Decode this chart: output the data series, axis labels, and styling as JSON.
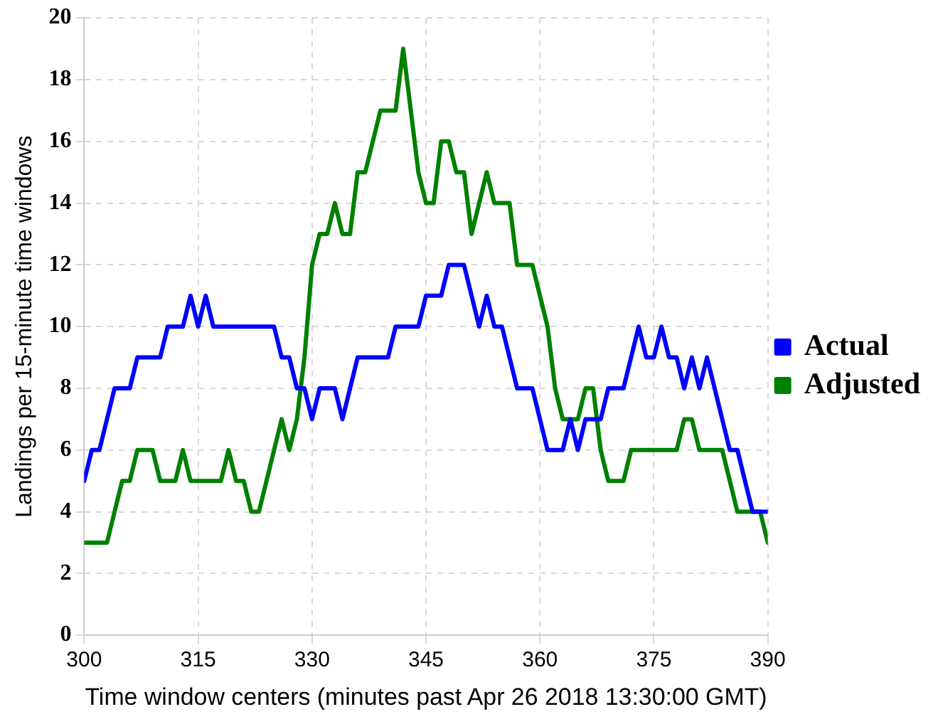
{
  "chart_data": {
    "type": "line",
    "xlabel": "Time window centers (minutes past Apr 26 2018 13:30:00 GMT)",
    "ylabel": "Landings per 15-minute time windows",
    "x": [
      300,
      301,
      302,
      303,
      304,
      305,
      306,
      307,
      308,
      309,
      310,
      311,
      312,
      313,
      314,
      315,
      316,
      317,
      318,
      319,
      320,
      321,
      322,
      323,
      324,
      325,
      326,
      327,
      328,
      329,
      330,
      331,
      332,
      333,
      334,
      335,
      336,
      337,
      338,
      339,
      340,
      341,
      342,
      343,
      344,
      345,
      346,
      347,
      348,
      349,
      350,
      351,
      352,
      353,
      354,
      355,
      356,
      357,
      358,
      359,
      360,
      361,
      362,
      363,
      364,
      365,
      366,
      367,
      368,
      369,
      370,
      371,
      372,
      373,
      374,
      375,
      376,
      377,
      378,
      379,
      380,
      381,
      382,
      383,
      384,
      385,
      386,
      387,
      388,
      389,
      390
    ],
    "series": [
      {
        "name": "Actual",
        "color": "#0000ff",
        "values": [
          5,
          6,
          6,
          7,
          8,
          8,
          8,
          9,
          9,
          9,
          9,
          10,
          10,
          10,
          11,
          10,
          11,
          10,
          10,
          10,
          10,
          10,
          10,
          10,
          10,
          10,
          9,
          9,
          8,
          8,
          7,
          8,
          8,
          8,
          7,
          8,
          9,
          9,
          9,
          9,
          9,
          10,
          10,
          10,
          10,
          11,
          11,
          11,
          12,
          12,
          12,
          11,
          10,
          11,
          10,
          10,
          9,
          8,
          8,
          8,
          7,
          6,
          6,
          6,
          7,
          6,
          7,
          7,
          7,
          8,
          8,
          8,
          9,
          10,
          9,
          9,
          10,
          9,
          9,
          8,
          9,
          8,
          9,
          8,
          7,
          6,
          6,
          5,
          4,
          4,
          4
        ]
      },
      {
        "name": "Adjusted",
        "color": "#008000",
        "values": [
          3,
          3,
          3,
          3,
          4,
          5,
          5,
          6,
          6,
          6,
          5,
          5,
          5,
          6,
          5,
          5,
          5,
          5,
          5,
          6,
          5,
          5,
          4,
          4,
          5,
          6,
          7,
          6,
          7,
          9,
          12,
          13,
          13,
          14,
          13,
          13,
          15,
          15,
          16,
          17,
          17,
          17,
          19,
          17,
          15,
          14,
          14,
          16,
          16,
          15,
          15,
          13,
          14,
          15,
          14,
          14,
          14,
          12,
          12,
          12,
          11,
          10,
          8,
          7,
          7,
          7,
          8,
          8,
          6,
          5,
          5,
          5,
          6,
          6,
          6,
          6,
          6,
          6,
          6,
          7,
          7,
          6,
          6,
          6,
          6,
          5,
          4,
          4,
          4,
          4,
          3
        ]
      }
    ],
    "xlim": [
      300,
      390
    ],
    "xticks": [
      300,
      315,
      330,
      345,
      360,
      375,
      390
    ],
    "ylim": [
      0,
      20
    ],
    "yticks": [
      0,
      2,
      4,
      6,
      8,
      10,
      12,
      14,
      16,
      18,
      20
    ],
    "grid": true,
    "legend": "right",
    "marker": "none",
    "line_style": "solid"
  }
}
